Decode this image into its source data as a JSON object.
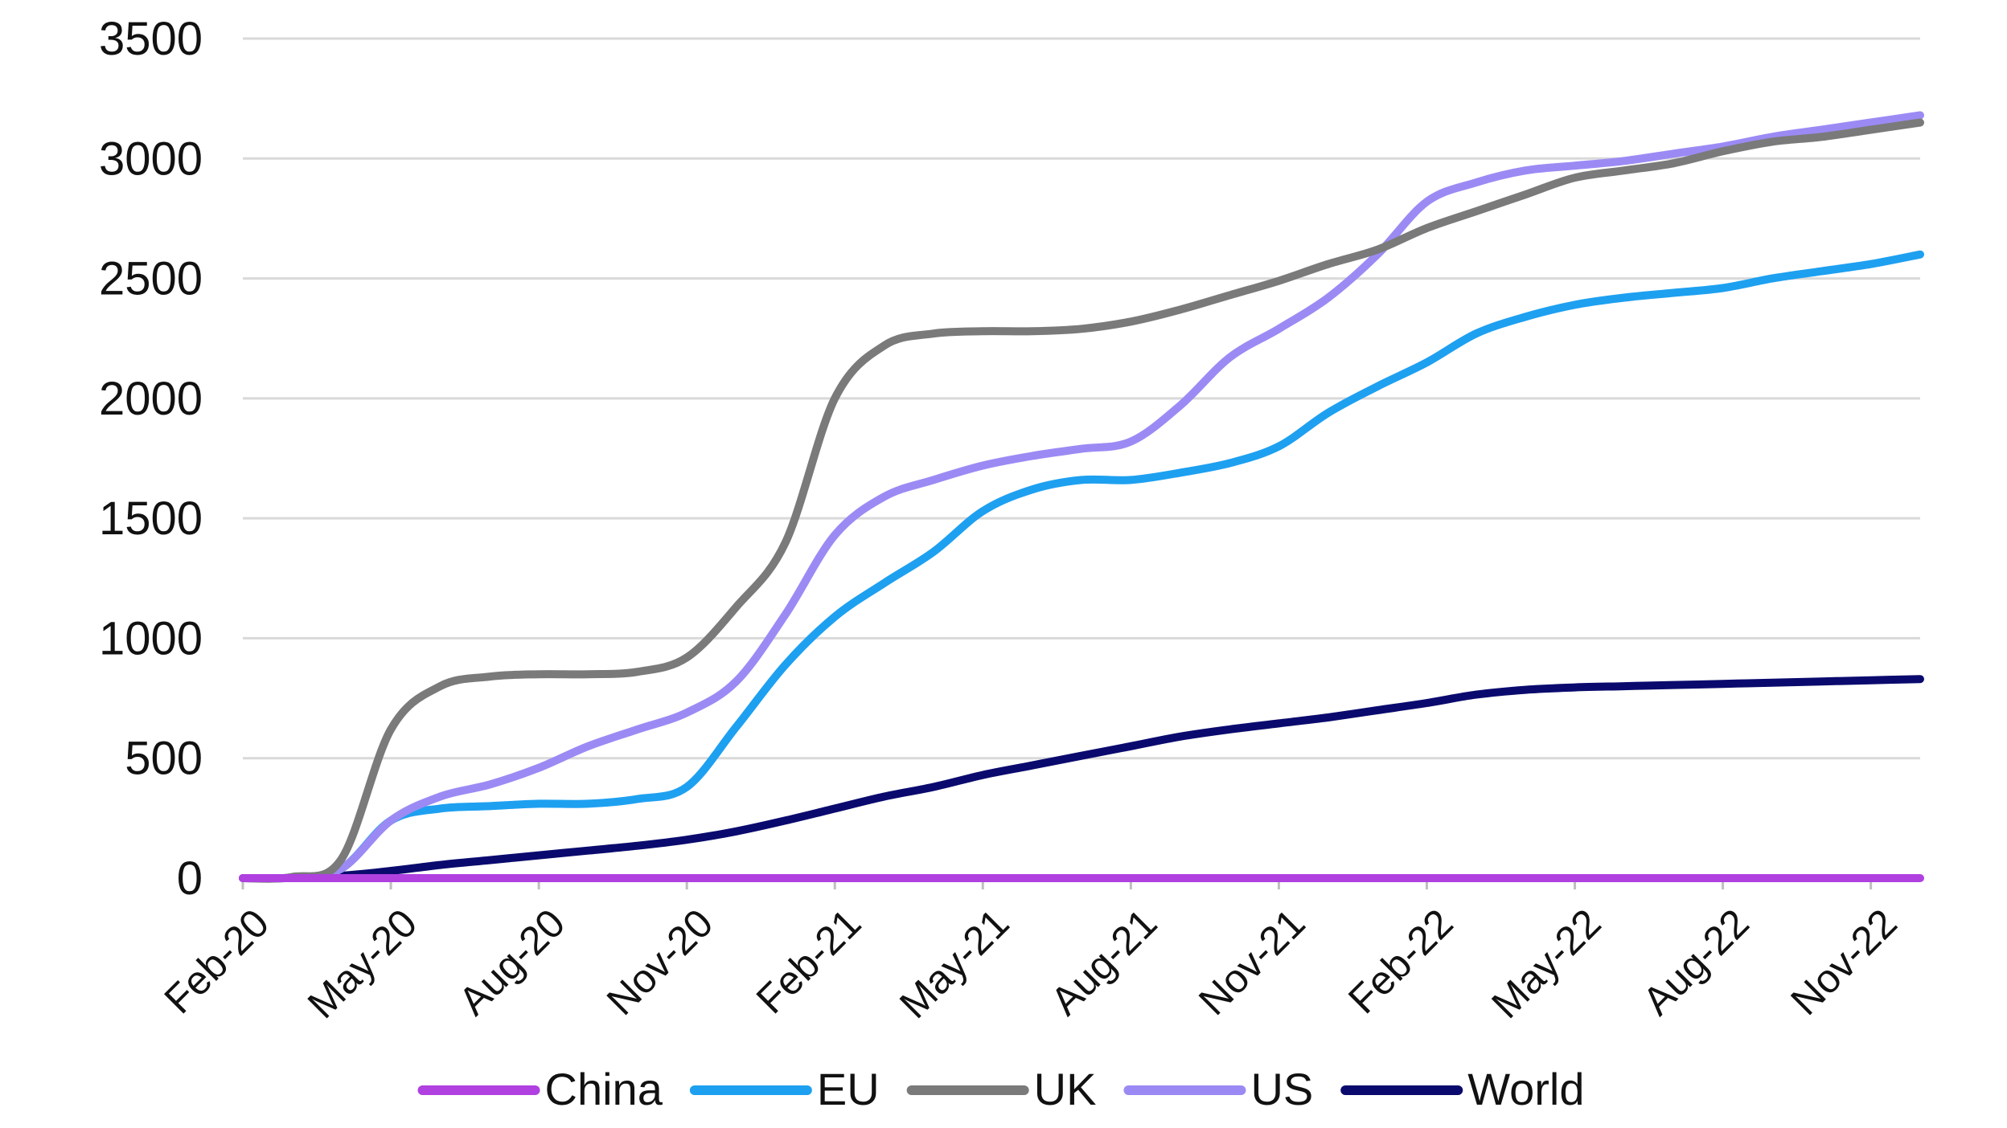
{
  "chart_data": {
    "type": "line",
    "title": "",
    "xlabel": "",
    "ylabel": "",
    "ylim": [
      0,
      3500
    ],
    "yticks": [
      0,
      500,
      1000,
      1500,
      2000,
      2500,
      3000,
      3500
    ],
    "grid": "horizontal",
    "legend_position": "bottom",
    "x_tick_labels": [
      "Feb-20",
      "May-20",
      "Aug-20",
      "Nov-20",
      "Feb-21",
      "May-21",
      "Aug-21",
      "Nov-21",
      "Feb-22",
      "May-22",
      "Aug-22",
      "Nov-22"
    ],
    "x": [
      "Feb-20",
      "Mar-20",
      "Apr-20",
      "May-20",
      "Jun-20",
      "Jul-20",
      "Aug-20",
      "Sep-20",
      "Oct-20",
      "Nov-20",
      "Dec-20",
      "Jan-21",
      "Feb-21",
      "Mar-21",
      "Apr-21",
      "May-21",
      "Jun-21",
      "Jul-21",
      "Aug-21",
      "Sep-21",
      "Oct-21",
      "Nov-21",
      "Dec-21",
      "Jan-22",
      "Feb-22",
      "Mar-22",
      "Apr-22",
      "May-22",
      "Jun-22",
      "Jul-22",
      "Aug-22",
      "Sep-22",
      "Oct-22",
      "Nov-22",
      "Dec-22"
    ],
    "series": [
      {
        "name": "China",
        "color": "#b040e0",
        "values": [
          0,
          0,
          0,
          0,
          0,
          0,
          0,
          0,
          0,
          0,
          0,
          0,
          0,
          0,
          0,
          0,
          0,
          0,
          0,
          0,
          0,
          0,
          0,
          0,
          0,
          0,
          0,
          0,
          0,
          0,
          0,
          0,
          0,
          0,
          0
        ]
      },
      {
        "name": "EU",
        "color": "#1ea0f0",
        "values": [
          0,
          2,
          40,
          240,
          290,
          300,
          310,
          310,
          330,
          380,
          630,
          890,
          1090,
          1230,
          1360,
          1530,
          1620,
          1660,
          1660,
          1690,
          1730,
          1800,
          1940,
          2050,
          2150,
          2270,
          2340,
          2390,
          2420,
          2440,
          2460,
          2500,
          2530,
          2560,
          2600
        ]
      },
      {
        "name": "UK",
        "color": "#7a7a7a",
        "values": [
          0,
          5,
          80,
          620,
          800,
          840,
          850,
          850,
          860,
          920,
          1130,
          1400,
          2000,
          2220,
          2270,
          2280,
          2280,
          2290,
          2320,
          2370,
          2430,
          2490,
          2560,
          2620,
          2710,
          2780,
          2850,
          2920,
          2950,
          2980,
          3030,
          3070,
          3090,
          3120,
          3150
        ]
      },
      {
        "name": "US",
        "color": "#9c8af4",
        "values": [
          0,
          2,
          40,
          240,
          340,
          390,
          460,
          550,
          620,
          690,
          820,
          1100,
          1430,
          1590,
          1660,
          1720,
          1760,
          1790,
          1820,
          1970,
          2170,
          2290,
          2420,
          2600,
          2820,
          2900,
          2950,
          2970,
          2990,
          3020,
          3050,
          3090,
          3120,
          3150,
          3180
        ]
      },
      {
        "name": "World",
        "color": "#0a0a6e",
        "values": [
          0,
          1,
          10,
          30,
          55,
          75,
          95,
          115,
          135,
          160,
          195,
          240,
          290,
          340,
          380,
          430,
          470,
          510,
          550,
          590,
          620,
          645,
          670,
          700,
          730,
          765,
          785,
          795,
          800,
          805,
          810,
          815,
          820,
          825,
          830
        ]
      }
    ]
  }
}
